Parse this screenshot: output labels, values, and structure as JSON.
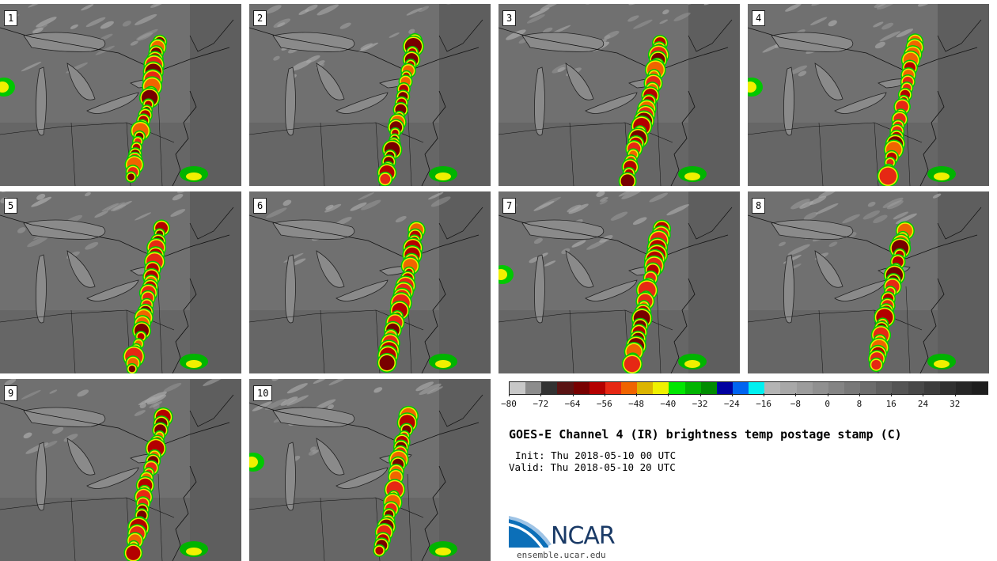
{
  "title": "GOES-E Channel 4 (IR) brightness temp postage stamp (C)",
  "init_line": "Init: Thu 2018-05-10 00 UTC",
  "valid_line": "Valid: Thu 2018-05-10 20 UTC",
  "site": "ensemble.ucar.edu",
  "logo_text": "NCAR",
  "stamps": [
    "1",
    "2",
    "3",
    "4",
    "5",
    "6",
    "7",
    "8",
    "9",
    "10"
  ],
  "colorbar": {
    "tick_labels": [
      "−80",
      "−72",
      "−64",
      "−56",
      "−48",
      "−40",
      "−32",
      "−24",
      "−16",
      "−8",
      "0",
      "8",
      "16",
      "24",
      "32"
    ],
    "tick_values": [
      -80,
      -72,
      -64,
      -56,
      -48,
      -40,
      -32,
      -24,
      -16,
      -8,
      0,
      8,
      16,
      24,
      32
    ],
    "range": [
      -80,
      40
    ],
    "colors": [
      "#c8c8c8",
      "#8c8c8c",
      "#323232",
      "#5a1414",
      "#780000",
      "#b40000",
      "#e62814",
      "#f06400",
      "#dcb400",
      "#f0f000",
      "#00e600",
      "#00b400",
      "#008c00",
      "#0000a0",
      "#0064f0",
      "#00f0f0",
      "#b4b4b4",
      "#a8a8a8",
      "#9c9c9c",
      "#909090",
      "#848484",
      "#787878",
      "#6c6c6c",
      "#606060",
      "#545454",
      "#484848",
      "#3c3c3c",
      "#303030",
      "#262626",
      "#1e1e1e"
    ]
  }
}
